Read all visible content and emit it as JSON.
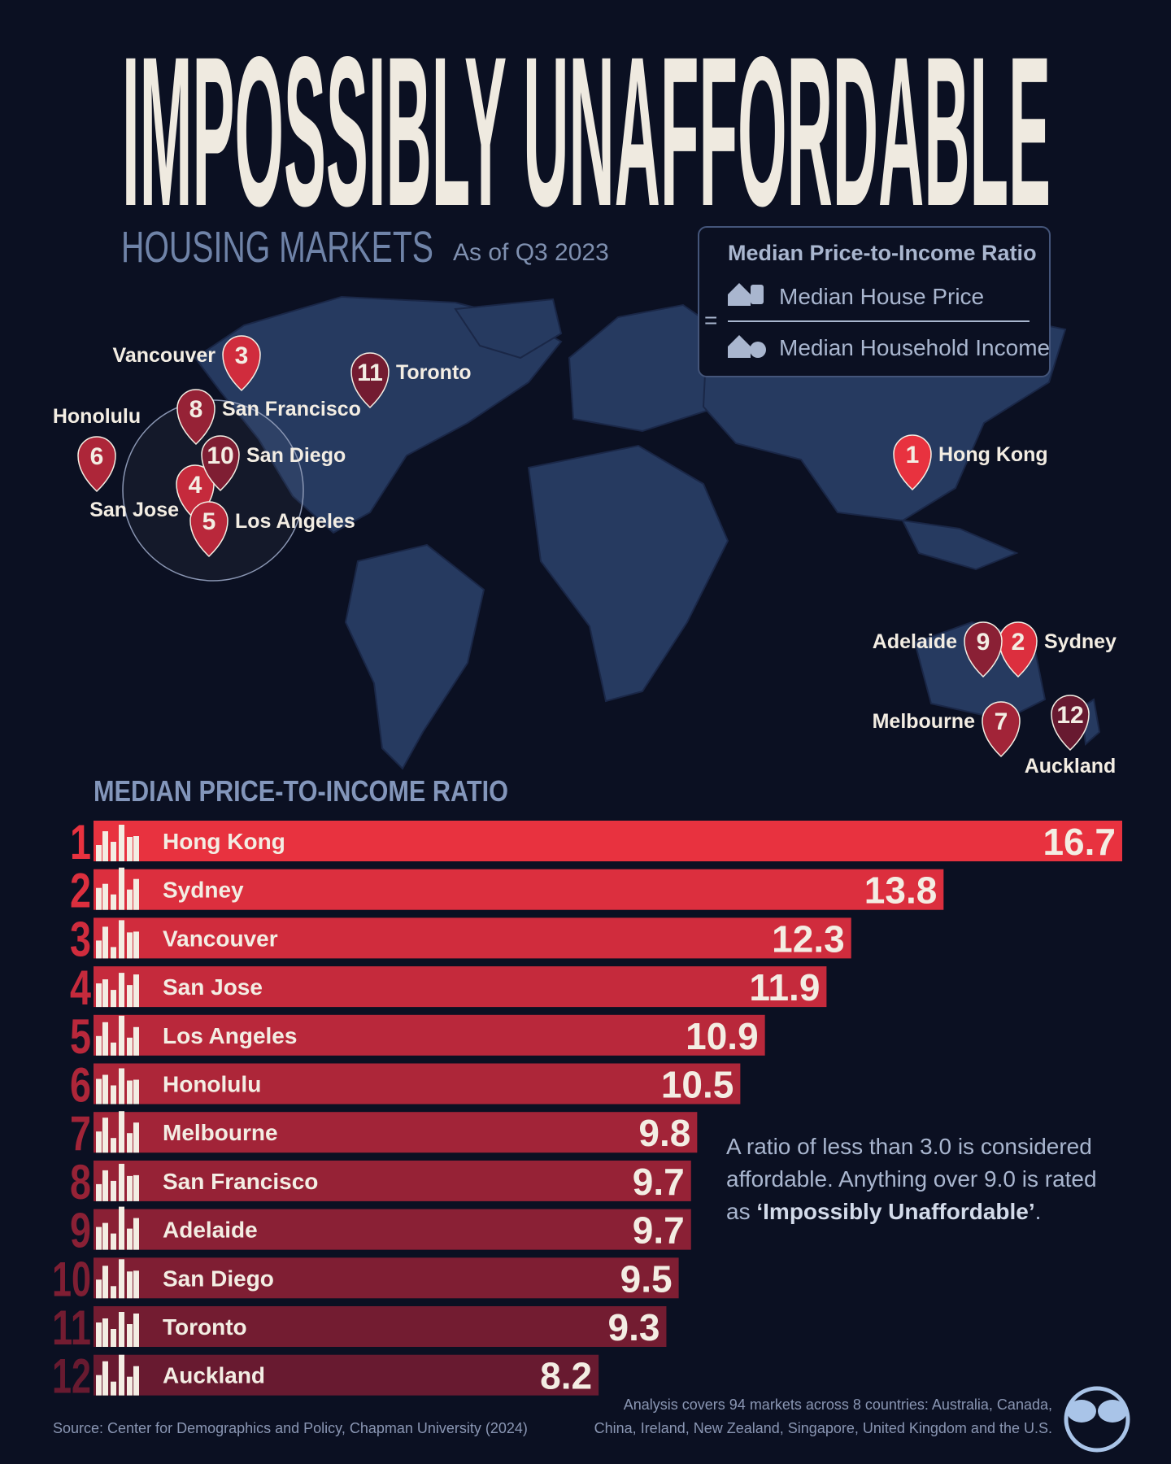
{
  "title": "IMPOSSIBLY UNAFFORDABLE",
  "subtitle": "HOUSING MARKETS",
  "date": "As of Q3 2023",
  "legend": {
    "title": "Median Price-to-Income Ratio",
    "equals": "=",
    "numerator": "Median House Price",
    "denominator": "Median Household Income"
  },
  "map": {
    "pins": [
      {
        "label": "1",
        "city": "Hong Kong"
      },
      {
        "label": "2",
        "city": "Sydney"
      },
      {
        "label": "3",
        "city": "Vancouver"
      },
      {
        "label": "4",
        "city": "San Jose"
      },
      {
        "label": "5",
        "city": "Los Angeles"
      },
      {
        "label": "6",
        "city": "Honolulu"
      },
      {
        "label": "7",
        "city": "Melbourne"
      },
      {
        "label": "8",
        "city": "San Francisco"
      },
      {
        "label": "9",
        "city": "Adelaide"
      },
      {
        "label": "10",
        "city": "San Diego"
      },
      {
        "label": "11",
        "city": "Toronto"
      },
      {
        "label": "12",
        "city": "Auckland"
      }
    ]
  },
  "chart_data": {
    "type": "bar",
    "orientation": "horizontal",
    "title": "MEDIAN PRICE-TO-INCOME RATIO",
    "ranks": [
      1,
      2,
      3,
      4,
      5,
      6,
      7,
      8,
      9,
      10,
      11,
      12
    ],
    "categories": [
      "Hong Kong",
      "Sydney",
      "Vancouver",
      "San Jose",
      "Los Angeles",
      "Honolulu",
      "Melbourne",
      "San Francisco",
      "Adelaide",
      "San Diego",
      "Toronto",
      "Auckland"
    ],
    "values": [
      16.7,
      13.8,
      12.3,
      11.9,
      10.9,
      10.5,
      9.8,
      9.7,
      9.7,
      9.5,
      9.3,
      8.2
    ],
    "colors": [
      "#e8323f",
      "#dc2f3e",
      "#d02c3d",
      "#c52a3c",
      "#b9283b",
      "#ad2639",
      "#a22438",
      "#962236",
      "#8a2035",
      "#7f1e33",
      "#731c31",
      "#681a30"
    ]
  },
  "note": [
    "A ratio of less than 3.0 is considered affordable. Anything over 9.0 is rated as ",
    "‘Impossibly Unaffordable’",
    "."
  ],
  "source": "Source: Center for Demographics and Policy, Chapman University (2024)",
  "analysis": [
    "Analysis covers 94 markets across 8 countries: Australia, Canada,",
    "China, Ireland, New Zealand, Singapore, United Kingdom and the U.S."
  ]
}
